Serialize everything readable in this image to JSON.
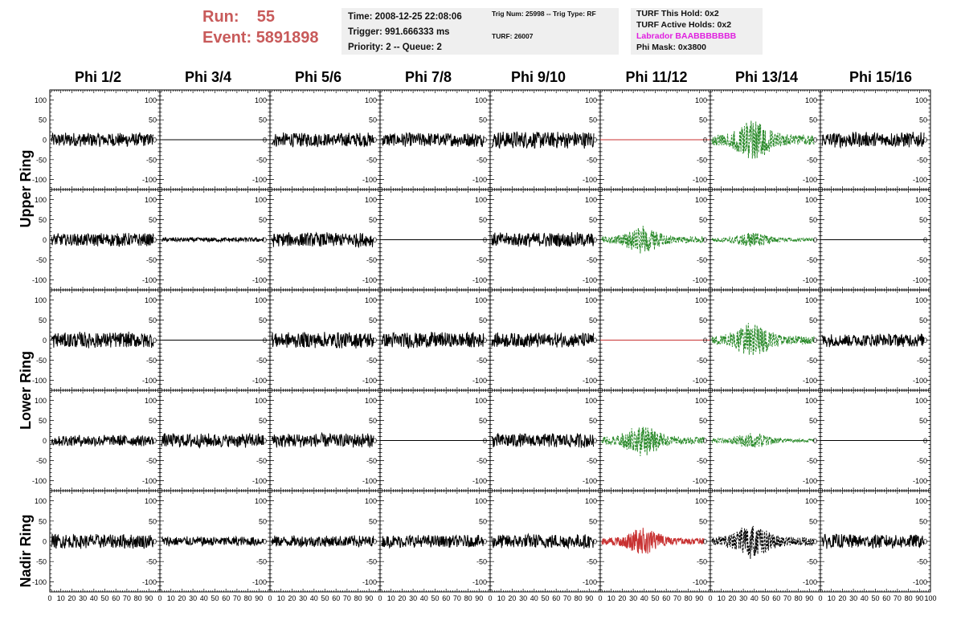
{
  "header": {
    "run_label": "Run:",
    "run_value": "55",
    "event_label": "Event:",
    "event_value": "5891898",
    "time": "Time: 2008-12-25 22:08:06",
    "trigger": "Trigger: 991.666333 ms",
    "priority": "Priority: 2 -- Queue: 2",
    "trig_num": "Trig Num: 25998 -- Trig Type: RF",
    "turf_num": "TURF: 26007",
    "turf_hold": "TURF This Hold: 0x2",
    "turf_active": "TURF Active Holds: 0x2",
    "labrador": "Labrador BAABBBBBBB",
    "phi_mask": "Phi Mask: 0x3800"
  },
  "colors": {
    "header_red": "#c85a5a",
    "labrador_magenta": "#e020e0",
    "trace_black": "#000000",
    "trace_red": "#c83232",
    "trace_green": "#2a8a2a"
  },
  "chart_data": {
    "type": "line",
    "columns": [
      "Phi 1/2",
      "Phi 3/4",
      "Phi 5/6",
      "Phi 7/8",
      "Phi 9/10",
      "Phi 11/12",
      "Phi 13/14",
      "Phi 15/16"
    ],
    "rows": [
      "Upper Ring",
      "Lower Ring",
      "Nadir Ring"
    ],
    "xlim": [
      0,
      100
    ],
    "x_ticks": [
      "0",
      "10",
      "20",
      "30",
      "40",
      "50",
      "60",
      "70",
      "80",
      "90",
      "100"
    ],
    "ylim": [
      -125,
      125
    ],
    "y_ticks": [
      "100",
      "50",
      "0",
      "-50",
      "-100"
    ],
    "panels": [
      [
        {
          "style": "noise",
          "color": "black",
          "amp": 15
        },
        {
          "style": "flat",
          "color": "black",
          "amp": 0
        },
        {
          "style": "noise",
          "color": "black",
          "amp": 15
        },
        {
          "style": "noise",
          "color": "black",
          "amp": 15
        },
        {
          "style": "noise",
          "color": "black",
          "amp": 18
        },
        {
          "style": "flat",
          "color": "red",
          "amp": 0
        },
        {
          "style": "burst",
          "color": "green",
          "amp": 55
        },
        {
          "style": "noise",
          "color": "black",
          "amp": 16
        }
      ],
      [
        {
          "style": "noise",
          "color": "black",
          "amp": 14
        },
        {
          "style": "noise",
          "color": "black",
          "amp": 5
        },
        {
          "style": "noise",
          "color": "black",
          "amp": 15
        },
        {
          "style": "flat",
          "color": "black",
          "amp": 0
        },
        {
          "style": "noise",
          "color": "black",
          "amp": 15
        },
        {
          "style": "burst",
          "color": "green",
          "amp": 35
        },
        {
          "style": "burst",
          "color": "green",
          "amp": 20
        },
        {
          "style": "flat",
          "color": "black",
          "amp": 0
        }
      ],
      [
        {
          "style": "noise",
          "color": "black",
          "amp": 17
        },
        {
          "style": "flat",
          "color": "black",
          "amp": 0
        },
        {
          "style": "noise",
          "color": "black",
          "amp": 17
        },
        {
          "style": "noise",
          "color": "black",
          "amp": 17
        },
        {
          "style": "noise",
          "color": "black",
          "amp": 15
        },
        {
          "style": "flat",
          "color": "red",
          "amp": 0
        },
        {
          "style": "burst",
          "color": "green",
          "amp": 45
        },
        {
          "style": "noise",
          "color": "black",
          "amp": 14
        }
      ],
      [
        {
          "style": "noise",
          "color": "black",
          "amp": 12
        },
        {
          "style": "noise",
          "color": "black",
          "amp": 15
        },
        {
          "style": "noise",
          "color": "black",
          "amp": 15
        },
        {
          "style": "flat",
          "color": "black",
          "amp": 0
        },
        {
          "style": "noise",
          "color": "black",
          "amp": 15
        },
        {
          "style": "burst",
          "color": "green",
          "amp": 40
        },
        {
          "style": "burst",
          "color": "green",
          "amp": 20
        },
        {
          "style": "flat",
          "color": "black",
          "amp": 0
        }
      ],
      [
        {
          "style": "noise",
          "color": "black",
          "amp": 15
        },
        {
          "style": "noise",
          "color": "black",
          "amp": 10
        },
        {
          "style": "noise",
          "color": "black",
          "amp": 12
        },
        {
          "style": "noise",
          "color": "black",
          "amp": 13
        },
        {
          "style": "noise",
          "color": "black",
          "amp": 15
        },
        {
          "style": "burst",
          "color": "red",
          "amp": 35
        },
        {
          "style": "burst",
          "color": "black-dashed",
          "amp": 45
        },
        {
          "style": "noise",
          "color": "black",
          "amp": 15
        }
      ]
    ]
  }
}
